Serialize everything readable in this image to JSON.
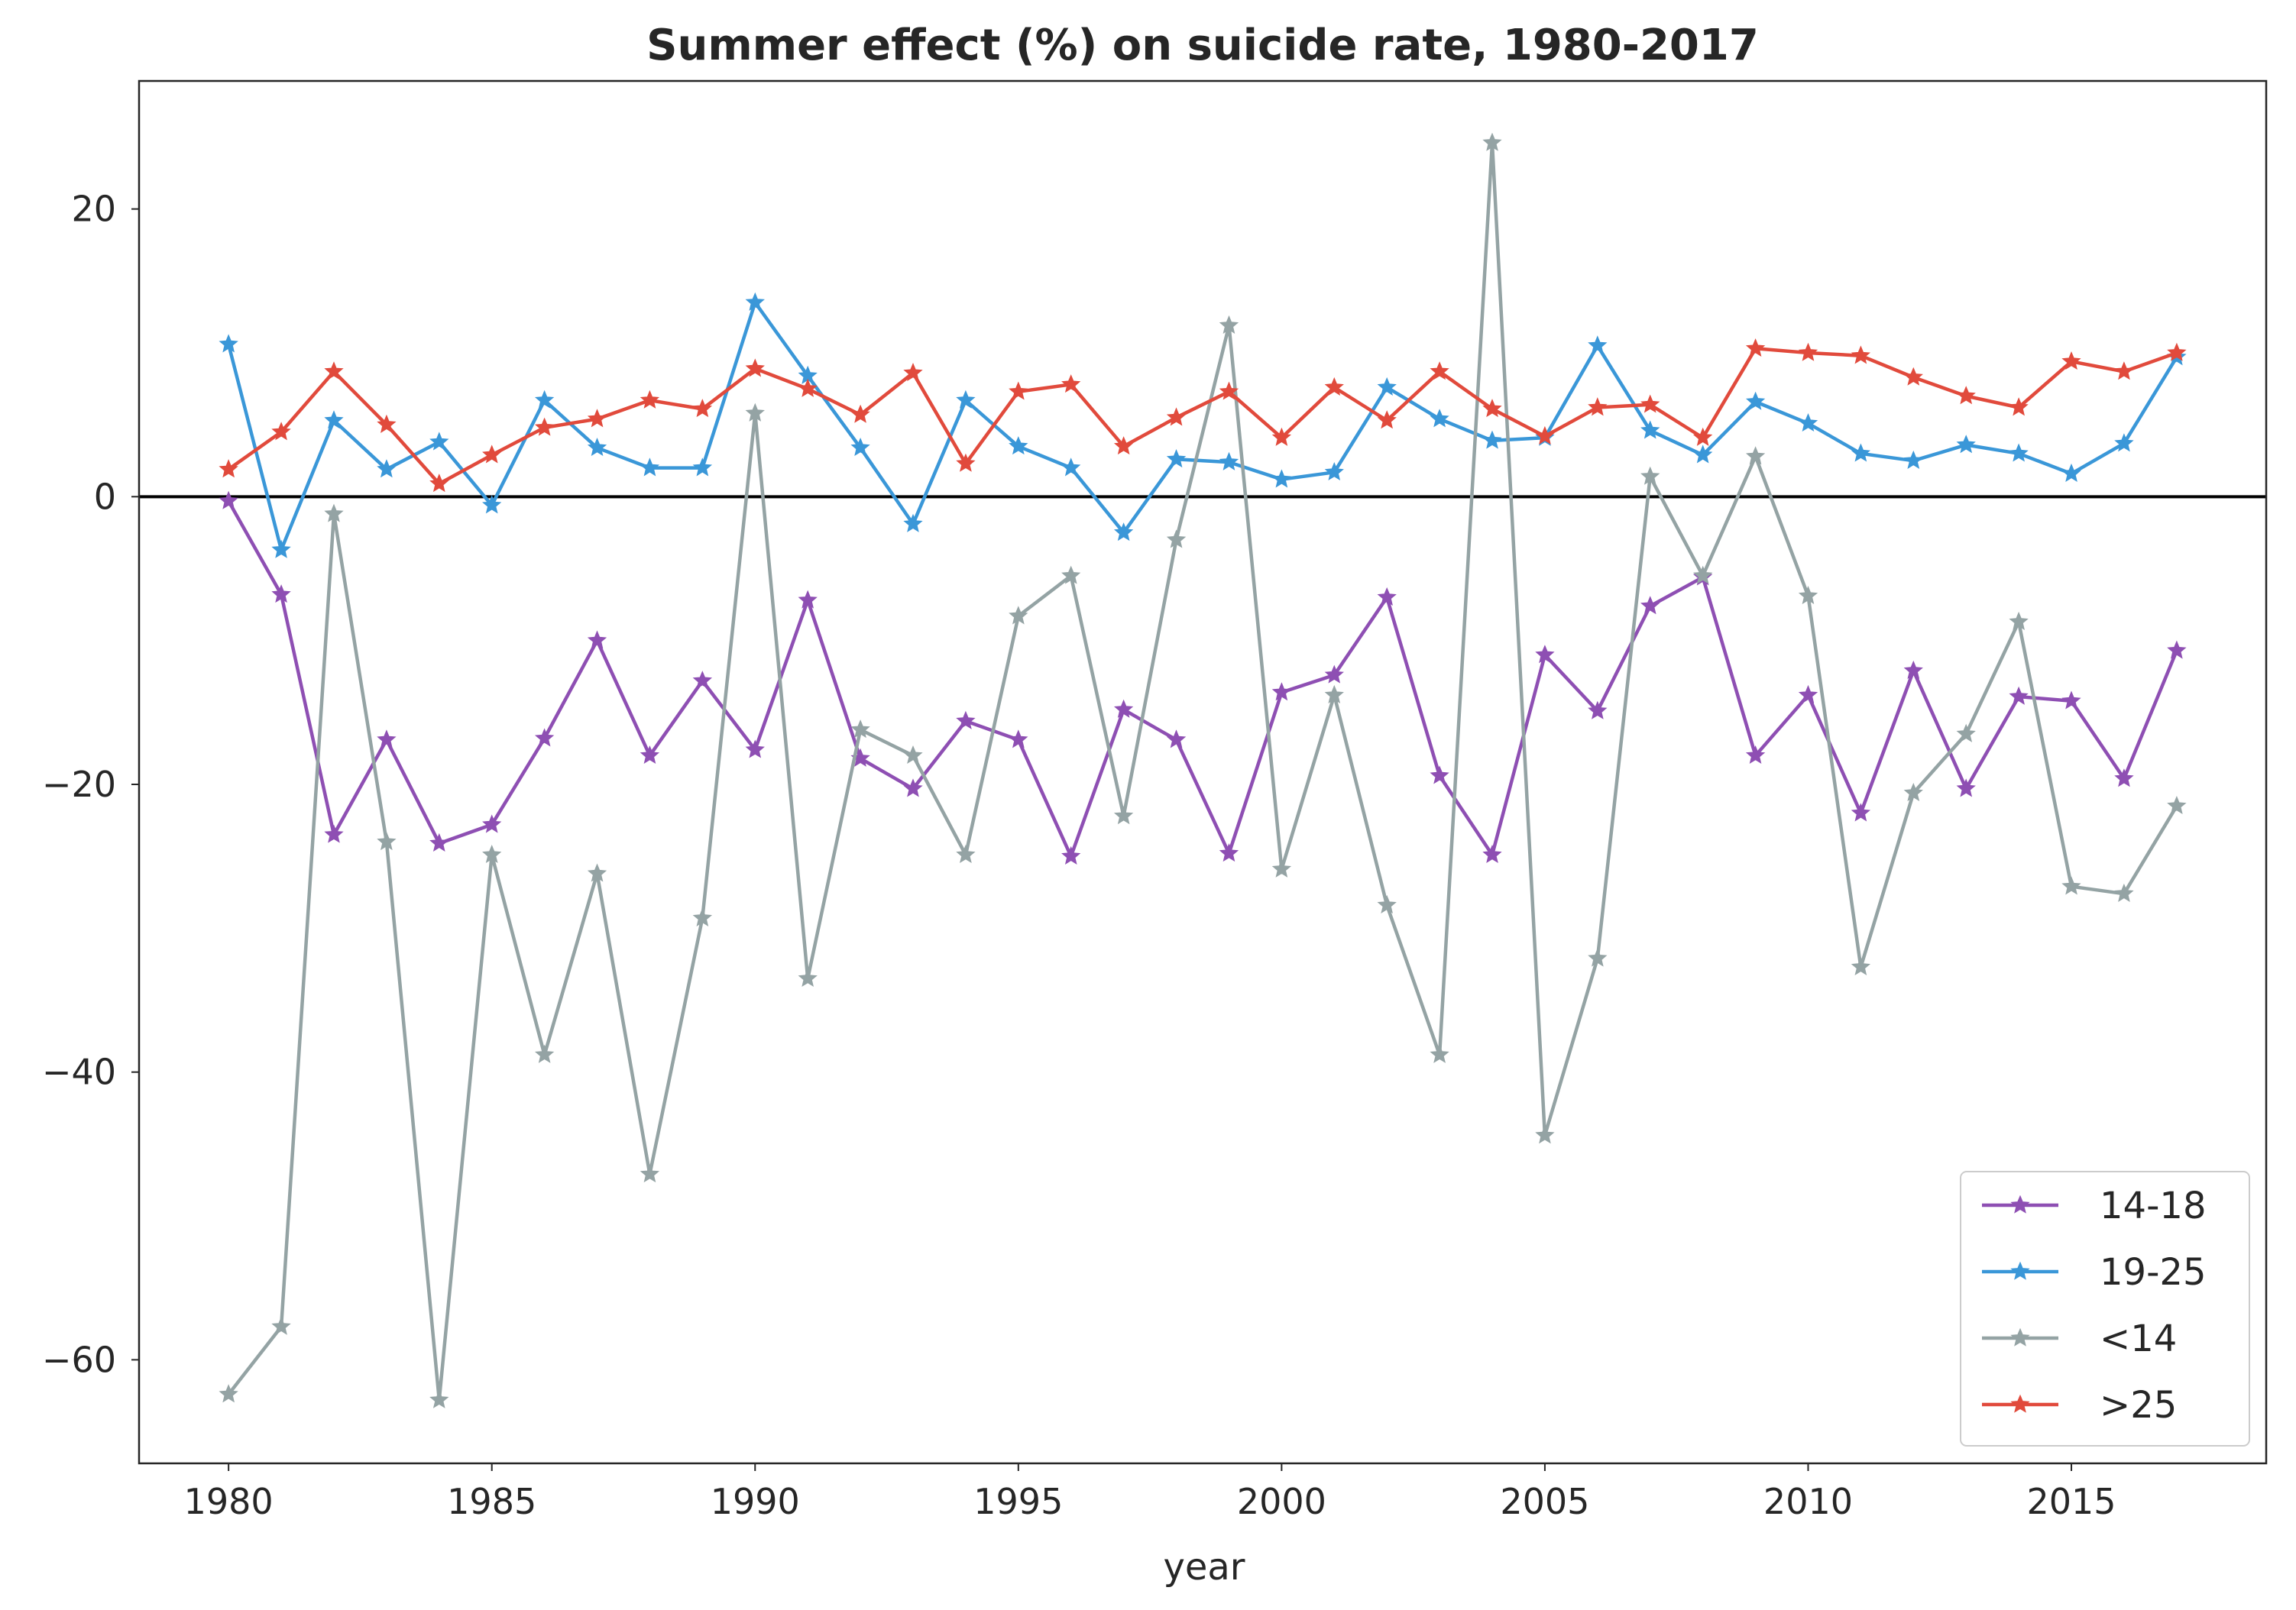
{
  "chart_data": {
    "type": "line",
    "title": "Summer effect (%) on suicide rate, 1980-2017",
    "xlabel": "year",
    "ylabel": "",
    "xlim": [
      1978.3,
      2018.7
    ],
    "ylim": [
      -67.2,
      28.9
    ],
    "xticks": [
      1980,
      1985,
      1990,
      1995,
      2000,
      2005,
      2010,
      2015
    ],
    "yticks": [
      -60,
      -40,
      -20,
      0,
      20
    ],
    "ytick_labels": [
      "−60",
      "−40",
      "−20",
      "0",
      "20"
    ],
    "reference_line": 0,
    "grid": false,
    "legend_position": "lower-right",
    "marker": "star",
    "x": [
      1980,
      1981,
      1982,
      1983,
      1984,
      1985,
      1986,
      1987,
      1988,
      1989,
      1990,
      1991,
      1992,
      1993,
      1994,
      1995,
      1996,
      1997,
      1998,
      1999,
      2000,
      2001,
      2002,
      2003,
      2004,
      2005,
      2006,
      2007,
      2008,
      2009,
      2010,
      2011,
      2012,
      2013,
      2014,
      2015,
      2016,
      2017
    ],
    "series": [
      {
        "name": "14-18",
        "color": "#8e4fb3",
        "values": [
          -0.3,
          -6.8,
          -23.5,
          -16.9,
          -24.1,
          -22.8,
          -16.8,
          -10.0,
          -18.0,
          -12.8,
          -17.6,
          -7.2,
          -18.2,
          -20.3,
          -15.6,
          -16.9,
          -25.0,
          -14.8,
          -16.9,
          -24.8,
          -13.6,
          -12.4,
          -7.0,
          -19.4,
          -24.9,
          -11.0,
          -14.9,
          -7.6,
          -5.6,
          -18.0,
          -13.8,
          -22.0,
          -12.1,
          -20.3,
          -13.9,
          -14.2,
          -19.6,
          -10.7
        ]
      },
      {
        "name": "19-25",
        "color": "#3a97d8",
        "values": [
          10.6,
          -3.7,
          5.3,
          1.9,
          3.8,
          -0.6,
          6.7,
          3.4,
          2.0,
          2.0,
          13.5,
          8.4,
          3.4,
          -1.9,
          6.7,
          3.5,
          2.0,
          -2.5,
          2.6,
          2.4,
          1.2,
          1.7,
          7.6,
          5.4,
          3.9,
          4.1,
          10.5,
          4.6,
          2.9,
          6.6,
          5.1,
          3.0,
          2.5,
          3.6,
          3.0,
          1.6,
          3.7,
          9.7
        ]
      },
      {
        "name": "<14",
        "color": "#94a3a4",
        "values": [
          -62.4,
          -57.7,
          -1.2,
          -24.0,
          -62.8,
          -24.9,
          -38.8,
          -26.2,
          -47.1,
          -29.3,
          5.8,
          -33.5,
          -16.2,
          -18.0,
          -24.9,
          -8.3,
          -5.5,
          -22.2,
          -3.0,
          11.9,
          -25.9,
          -13.8,
          -28.4,
          -38.8,
          24.6,
          -44.4,
          -32.1,
          1.4,
          -5.5,
          2.8,
          -6.9,
          -32.7,
          -20.6,
          -16.5,
          -8.7,
          -27.1,
          -27.6,
          -21.5
        ]
      },
      {
        "name": ">25",
        "color": "#e14a3c",
        "values": [
          1.9,
          4.5,
          8.7,
          5.0,
          0.9,
          2.9,
          4.8,
          5.4,
          6.7,
          6.1,
          8.9,
          7.5,
          5.7,
          8.6,
          2.3,
          7.3,
          7.8,
          3.5,
          5.5,
          7.3,
          4.1,
          7.6,
          5.3,
          8.7,
          6.1,
          4.2,
          6.2,
          6.4,
          4.1,
          10.3,
          10.0,
          9.8,
          8.3,
          7.0,
          6.2,
          9.4,
          8.7,
          10.0
        ]
      }
    ]
  }
}
